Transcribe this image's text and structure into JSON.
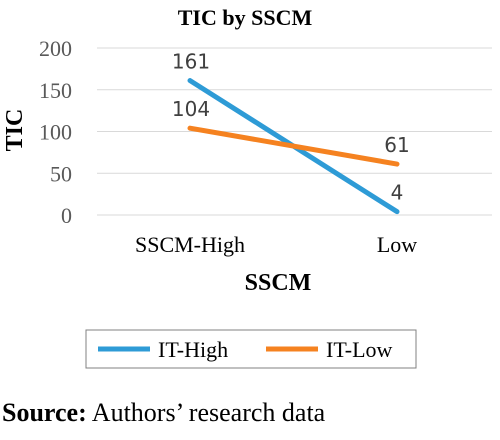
{
  "chart_data": {
    "type": "line",
    "title": "TIC by SSCM",
    "xlabel": "SSCM",
    "ylabel": "TIC",
    "categories": [
      "SSCM-High",
      "Low"
    ],
    "ylim": [
      0,
      200
    ],
    "yticks": [
      0,
      50,
      100,
      150,
      200
    ],
    "grid": true,
    "legend_position": "bottom",
    "series": [
      {
        "name": "IT-High",
        "values": [
          161,
          4
        ],
        "color": "#2E9BD6"
      },
      {
        "name": "IT-Low",
        "values": [
          104,
          61
        ],
        "color": "#F58220"
      }
    ]
  },
  "source": {
    "label": "Source:",
    "text": " Authors’ research data"
  }
}
